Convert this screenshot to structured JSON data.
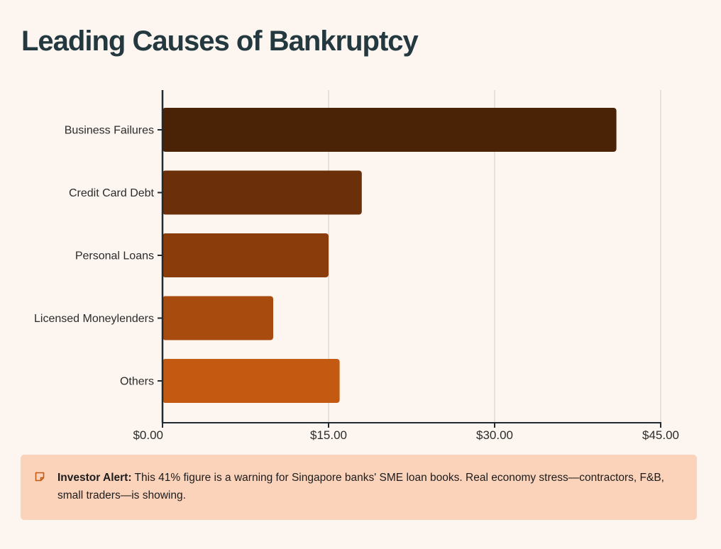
{
  "title": "Leading Causes of Bankruptcy",
  "colors": {
    "background": "#fdf6f0",
    "title": "#24393f",
    "axis": "#1f2a33",
    "grid": "#d9d2cc",
    "alert_bg": "#fbd3bb",
    "bars": [
      "#4a2307",
      "#6b3009",
      "#8a3d0b",
      "#a84b0e",
      "#c45a12"
    ]
  },
  "chart_data": {
    "type": "bar",
    "orientation": "horizontal",
    "title": "Leading Causes of Bankruptcy",
    "categories": [
      "Business Failures",
      "Credit Card Debt",
      "Personal Loans",
      "Licensed Moneylenders",
      "Others"
    ],
    "values": [
      41,
      18,
      15,
      10,
      16
    ],
    "xlim": [
      0,
      45
    ],
    "xticks": [
      0,
      15,
      30,
      45
    ],
    "xtick_labels": [
      "$0.00",
      "$15.00",
      "$30.00",
      "$45.00"
    ],
    "grid": true,
    "xlabel": "",
    "ylabel": ""
  },
  "alert": {
    "icon": "note-icon",
    "label": "Investor Alert:",
    "text": "This 41% figure is a warning for Singapore banks' SME loan books. Real economy stress—contractors, F&B, small traders—is showing."
  }
}
